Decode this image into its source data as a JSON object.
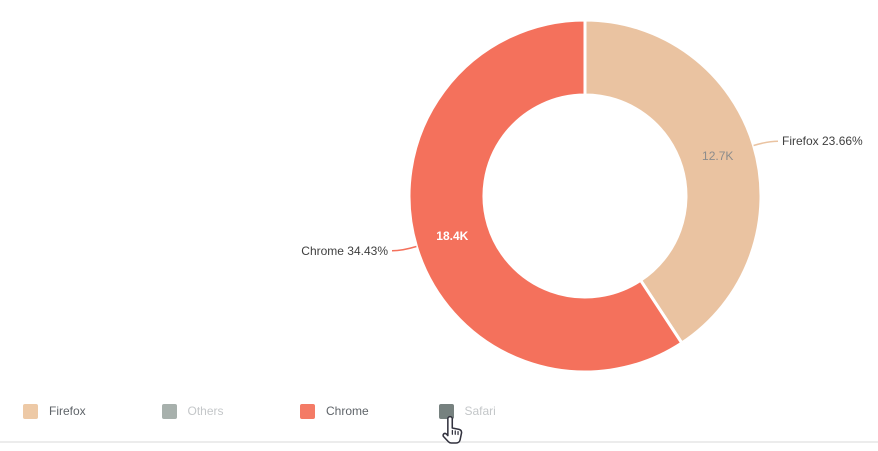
{
  "chart_data": {
    "type": "pie",
    "subtype": "donut",
    "title": "",
    "start_angle_deg": 90,
    "direction": "clockwise",
    "legend_position": "bottom-left",
    "slices": [
      {
        "name": "Firefox",
        "percent": 23.66,
        "value_label": "12.7K",
        "callout_label": "Firefox 23.66%",
        "color": "#EAC3A1",
        "inside_label_color": "#8C8C8C",
        "inside_label_weight": "normal"
      },
      {
        "name": "Chrome",
        "percent": 34.43,
        "value_label": "18.4K",
        "callout_label": "Chrome 34.43%",
        "color": "#F4715C",
        "inside_label_color": "#FFFFFF",
        "inside_label_weight": "bold"
      }
    ],
    "legend": [
      {
        "label": "Firefox",
        "color": "#EDC9A6",
        "active": true
      },
      {
        "label": "Others",
        "color": "#A7B0AC",
        "active": false
      },
      {
        "label": "Chrome",
        "color": "#F47B66",
        "active": true
      },
      {
        "label": "Safari",
        "color": "#76817F",
        "active": false
      }
    ]
  },
  "colors": {
    "callout_text": "#3F3F3F",
    "legend_text_active": "#5F6469",
    "legend_text_inactive": "#C4C7C9",
    "divider": "#ECECEC",
    "background": "#FFFFFF"
  }
}
